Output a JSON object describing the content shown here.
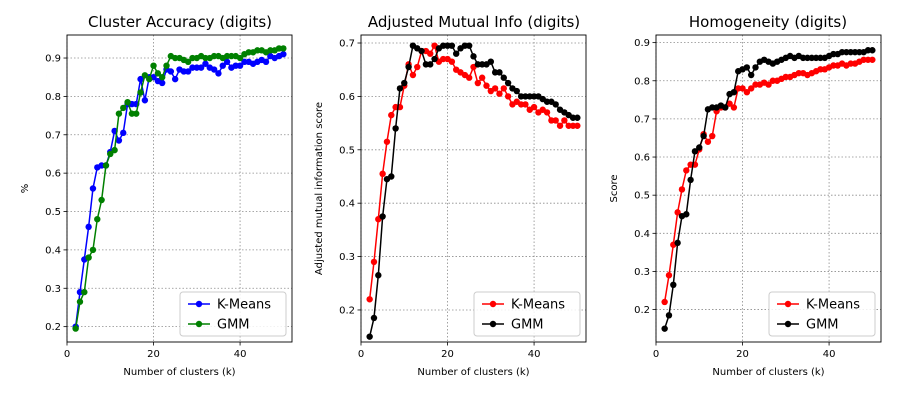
{
  "chart_data": [
    {
      "type": "line",
      "title": "Cluster Accuracy (digits)",
      "xlabel": "Number of clusters (k)",
      "ylabel": "%",
      "xlim": [
        0,
        52
      ],
      "ylim": [
        0.16,
        0.96
      ],
      "xticks": [
        0,
        20,
        40
      ],
      "yticks": [
        0.2,
        0.3,
        0.4,
        0.5,
        0.6,
        0.7,
        0.8,
        0.9
      ],
      "grid": true,
      "legend_position": "bottom-right",
      "x": [
        2,
        3,
        4,
        5,
        6,
        7,
        8,
        9,
        10,
        11,
        12,
        13,
        14,
        15,
        16,
        17,
        18,
        19,
        20,
        21,
        22,
        23,
        24,
        25,
        26,
        27,
        28,
        29,
        30,
        31,
        32,
        33,
        34,
        35,
        36,
        37,
        38,
        39,
        40,
        41,
        42,
        43,
        44,
        45,
        46,
        47,
        48,
        49,
        50
      ],
      "series": [
        {
          "name": "K-Means",
          "color": "#0000ff",
          "values": [
            0.2,
            0.29,
            0.375,
            0.46,
            0.56,
            0.615,
            0.62,
            0.62,
            0.655,
            0.71,
            0.685,
            0.705,
            0.78,
            0.78,
            0.78,
            0.845,
            0.79,
            0.85,
            0.85,
            0.84,
            0.835,
            0.87,
            0.865,
            0.845,
            0.87,
            0.865,
            0.865,
            0.875,
            0.875,
            0.875,
            0.885,
            0.875,
            0.87,
            0.86,
            0.88,
            0.89,
            0.875,
            0.88,
            0.88,
            0.89,
            0.89,
            0.885,
            0.89,
            0.895,
            0.89,
            0.905,
            0.9,
            0.905,
            0.91
          ]
        },
        {
          "name": "GMM",
          "color": "#008000",
          "values": [
            0.195,
            0.265,
            0.29,
            0.38,
            0.4,
            0.48,
            0.53,
            0.62,
            0.65,
            0.66,
            0.755,
            0.77,
            0.785,
            0.755,
            0.755,
            0.81,
            0.855,
            0.845,
            0.88,
            0.86,
            0.85,
            0.88,
            0.905,
            0.9,
            0.9,
            0.895,
            0.89,
            0.9,
            0.9,
            0.905,
            0.9,
            0.9,
            0.905,
            0.905,
            0.9,
            0.905,
            0.905,
            0.905,
            0.9,
            0.91,
            0.915,
            0.915,
            0.92,
            0.92,
            0.915,
            0.92,
            0.92,
            0.925,
            0.925
          ]
        }
      ]
    },
    {
      "type": "line",
      "title": "Adjusted Mutual Info (digits)",
      "xlabel": "Number of clusters (k)",
      "ylabel": "Adjusted mutual information score",
      "xlim": [
        0,
        52
      ],
      "ylim": [
        0.14,
        0.715
      ],
      "xticks": [
        0,
        20,
        40
      ],
      "yticks": [
        0.2,
        0.3,
        0.4,
        0.5,
        0.6,
        0.7
      ],
      "grid": true,
      "legend_position": "bottom-right",
      "x": [
        2,
        3,
        4,
        5,
        6,
        7,
        8,
        9,
        10,
        11,
        12,
        13,
        14,
        15,
        16,
        17,
        18,
        19,
        20,
        21,
        22,
        23,
        24,
        25,
        26,
        27,
        28,
        29,
        30,
        31,
        32,
        33,
        34,
        35,
        36,
        37,
        38,
        39,
        40,
        41,
        42,
        43,
        44,
        45,
        46,
        47,
        48,
        49,
        50
      ],
      "series": [
        {
          "name": "K-Means",
          "color": "#ff0000",
          "values": [
            0.22,
            0.29,
            0.37,
            0.455,
            0.515,
            0.565,
            0.58,
            0.58,
            0.62,
            0.66,
            0.64,
            0.655,
            0.685,
            0.685,
            0.68,
            0.695,
            0.665,
            0.67,
            0.67,
            0.665,
            0.65,
            0.645,
            0.64,
            0.635,
            0.655,
            0.625,
            0.635,
            0.62,
            0.61,
            0.615,
            0.605,
            0.615,
            0.6,
            0.585,
            0.59,
            0.585,
            0.585,
            0.575,
            0.58,
            0.57,
            0.575,
            0.57,
            0.555,
            0.555,
            0.545,
            0.555,
            0.545,
            0.545,
            0.545
          ]
        },
        {
          "name": "GMM",
          "color": "#000000",
          "values": [
            0.15,
            0.185,
            0.265,
            0.375,
            0.445,
            0.45,
            0.54,
            0.615,
            0.625,
            0.655,
            0.695,
            0.69,
            0.685,
            0.66,
            0.66,
            0.67,
            0.69,
            0.695,
            0.695,
            0.695,
            0.68,
            0.69,
            0.695,
            0.695,
            0.675,
            0.66,
            0.66,
            0.66,
            0.665,
            0.645,
            0.645,
            0.635,
            0.625,
            0.615,
            0.61,
            0.6,
            0.6,
            0.6,
            0.6,
            0.6,
            0.595,
            0.59,
            0.59,
            0.585,
            0.575,
            0.57,
            0.565,
            0.56,
            0.56
          ]
        }
      ]
    },
    {
      "type": "line",
      "title": "Homogeneity (digits)",
      "xlabel": "Number of clusters (k)",
      "ylabel": "Score",
      "xlim": [
        0,
        52
      ],
      "ylim": [
        0.115,
        0.92
      ],
      "xticks": [
        0,
        20,
        40
      ],
      "yticks": [
        0.2,
        0.3,
        0.4,
        0.5,
        0.6,
        0.7,
        0.8,
        0.9
      ],
      "grid": true,
      "legend_position": "bottom-right",
      "x": [
        2,
        3,
        4,
        5,
        6,
        7,
        8,
        9,
        10,
        11,
        12,
        13,
        14,
        15,
        16,
        17,
        18,
        19,
        20,
        21,
        22,
        23,
        24,
        25,
        26,
        27,
        28,
        29,
        30,
        31,
        32,
        33,
        34,
        35,
        36,
        37,
        38,
        39,
        40,
        41,
        42,
        43,
        44,
        45,
        46,
        47,
        48,
        49,
        50
      ],
      "series": [
        {
          "name": "K-Means",
          "color": "#ff0000",
          "values": [
            0.22,
            0.29,
            0.37,
            0.455,
            0.515,
            0.565,
            0.58,
            0.58,
            0.62,
            0.66,
            0.64,
            0.655,
            0.72,
            0.73,
            0.73,
            0.74,
            0.73,
            0.78,
            0.78,
            0.77,
            0.78,
            0.79,
            0.79,
            0.795,
            0.79,
            0.8,
            0.8,
            0.805,
            0.81,
            0.81,
            0.815,
            0.82,
            0.82,
            0.815,
            0.82,
            0.825,
            0.83,
            0.83,
            0.835,
            0.84,
            0.84,
            0.845,
            0.84,
            0.845,
            0.845,
            0.85,
            0.855,
            0.855,
            0.855
          ]
        },
        {
          "name": "GMM",
          "color": "#000000",
          "values": [
            0.15,
            0.185,
            0.265,
            0.375,
            0.445,
            0.45,
            0.54,
            0.615,
            0.625,
            0.655,
            0.725,
            0.73,
            0.73,
            0.735,
            0.73,
            0.765,
            0.77,
            0.825,
            0.83,
            0.835,
            0.815,
            0.835,
            0.85,
            0.855,
            0.85,
            0.845,
            0.85,
            0.855,
            0.86,
            0.865,
            0.86,
            0.865,
            0.86,
            0.86,
            0.86,
            0.86,
            0.86,
            0.86,
            0.865,
            0.87,
            0.87,
            0.875,
            0.875,
            0.875,
            0.875,
            0.875,
            0.875,
            0.88,
            0.88
          ]
        }
      ]
    }
  ]
}
